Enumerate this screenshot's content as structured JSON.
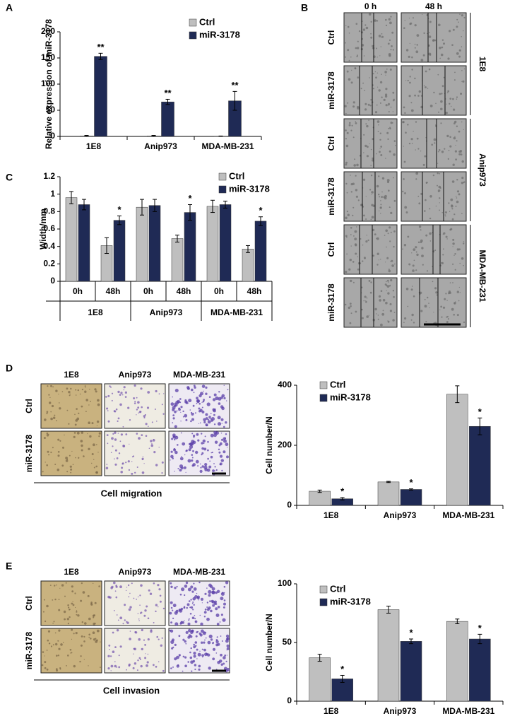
{
  "chart_data": [
    {
      "type": "bar",
      "ylabel": "Relative expression of miR-3178",
      "categories": [
        "1E8",
        "Anip973",
        "MDA-MB-231"
      ],
      "series": [
        {
          "name": "Ctrl",
          "color": "#bfbfbf",
          "values": [
            1,
            1,
            0.5
          ],
          "errors": [
            1,
            1,
            0.3
          ]
        },
        {
          "name": "miR-3178",
          "color": "#1f2a55",
          "values": [
            153,
            66,
            68
          ],
          "errors": [
            6,
            5,
            18
          ],
          "significance": [
            "**",
            "**",
            "**"
          ]
        }
      ],
      "ylim": [
        0,
        200
      ],
      "yticks": [
        0,
        50,
        100,
        150,
        200
      ]
    },
    {
      "type": "bar",
      "ylabel": "Width/mm",
      "categories": [
        "0h",
        "48h",
        "0h",
        "48h",
        "0h",
        "48h"
      ],
      "groups": [
        "1E8",
        "Anip973",
        "MDA-MB-231"
      ],
      "series": [
        {
          "name": "Ctrl",
          "color": "#bfbfbf",
          "values": [
            0.96,
            0.41,
            0.85,
            0.49,
            0.86,
            0.37
          ],
          "errors": [
            0.07,
            0.09,
            0.09,
            0.04,
            0.07,
            0.04
          ]
        },
        {
          "name": "miR-3178",
          "color": "#1f2a55",
          "values": [
            0.88,
            0.7,
            0.87,
            0.79,
            0.88,
            0.69
          ],
          "errors": [
            0.06,
            0.05,
            0.07,
            0.09,
            0.04,
            0.05
          ],
          "significance": [
            null,
            "*",
            null,
            "*",
            null,
            "*"
          ]
        }
      ],
      "ylim": [
        0,
        1.2
      ],
      "yticks": [
        0,
        0.2,
        0.4,
        0.6,
        0.8,
        1,
        1.2
      ]
    },
    {
      "type": "bar",
      "ylabel": "Cell number/N",
      "categories": [
        "1E8",
        "Anip973",
        "MDA-MB-231"
      ],
      "series": [
        {
          "name": "Ctrl",
          "color": "#bfbfbf",
          "values": [
            47,
            78,
            370
          ],
          "errors": [
            4,
            2,
            28
          ]
        },
        {
          "name": "miR-3178",
          "color": "#1f2a55",
          "values": [
            22,
            53,
            263
          ],
          "errors": [
            4,
            2,
            28
          ],
          "significance": [
            "*",
            "*",
            "*"
          ]
        }
      ],
      "ylim": [
        0,
        400
      ],
      "yticks": [
        0,
        200,
        400
      ]
    },
    {
      "type": "bar",
      "ylabel": "Cell number/N",
      "categories": [
        "1E8",
        "Anip973",
        "MDA-MB-231"
      ],
      "series": [
        {
          "name": "Ctrl",
          "color": "#bfbfbf",
          "values": [
            37,
            78,
            68
          ],
          "errors": [
            3,
            3,
            2
          ]
        },
        {
          "name": "miR-3178",
          "color": "#1f2a55",
          "values": [
            19,
            51,
            53
          ],
          "errors": [
            3,
            2,
            4
          ],
          "significance": [
            "*",
            "*",
            "*"
          ]
        }
      ],
      "ylim": [
        0,
        100
      ],
      "yticks": [
        0,
        50,
        100
      ]
    }
  ],
  "figure": {
    "panel_labels": [
      "A",
      "B",
      "C",
      "D",
      "E"
    ],
    "wound": {
      "columns": [
        "0 h",
        "48 h"
      ],
      "rows": [
        "Ctrl",
        "miR-3178",
        "Ctrl",
        "miR-3178",
        "Ctrl",
        "miR-3178"
      ],
      "groups": [
        "1E8",
        "Anip973",
        "MDA-MB-231"
      ]
    },
    "migration": {
      "columns": [
        "1E8",
        "Anip973",
        "MDA-MB-231"
      ],
      "rows": [
        "Ctrl",
        "miR-3178"
      ],
      "caption": "Cell migration"
    },
    "invasion": {
      "columns": [
        "1E8",
        "Anip973",
        "MDA-MB-231"
      ],
      "rows": [
        "Ctrl",
        "miR-3178"
      ],
      "caption": "Cell invasion"
    }
  }
}
